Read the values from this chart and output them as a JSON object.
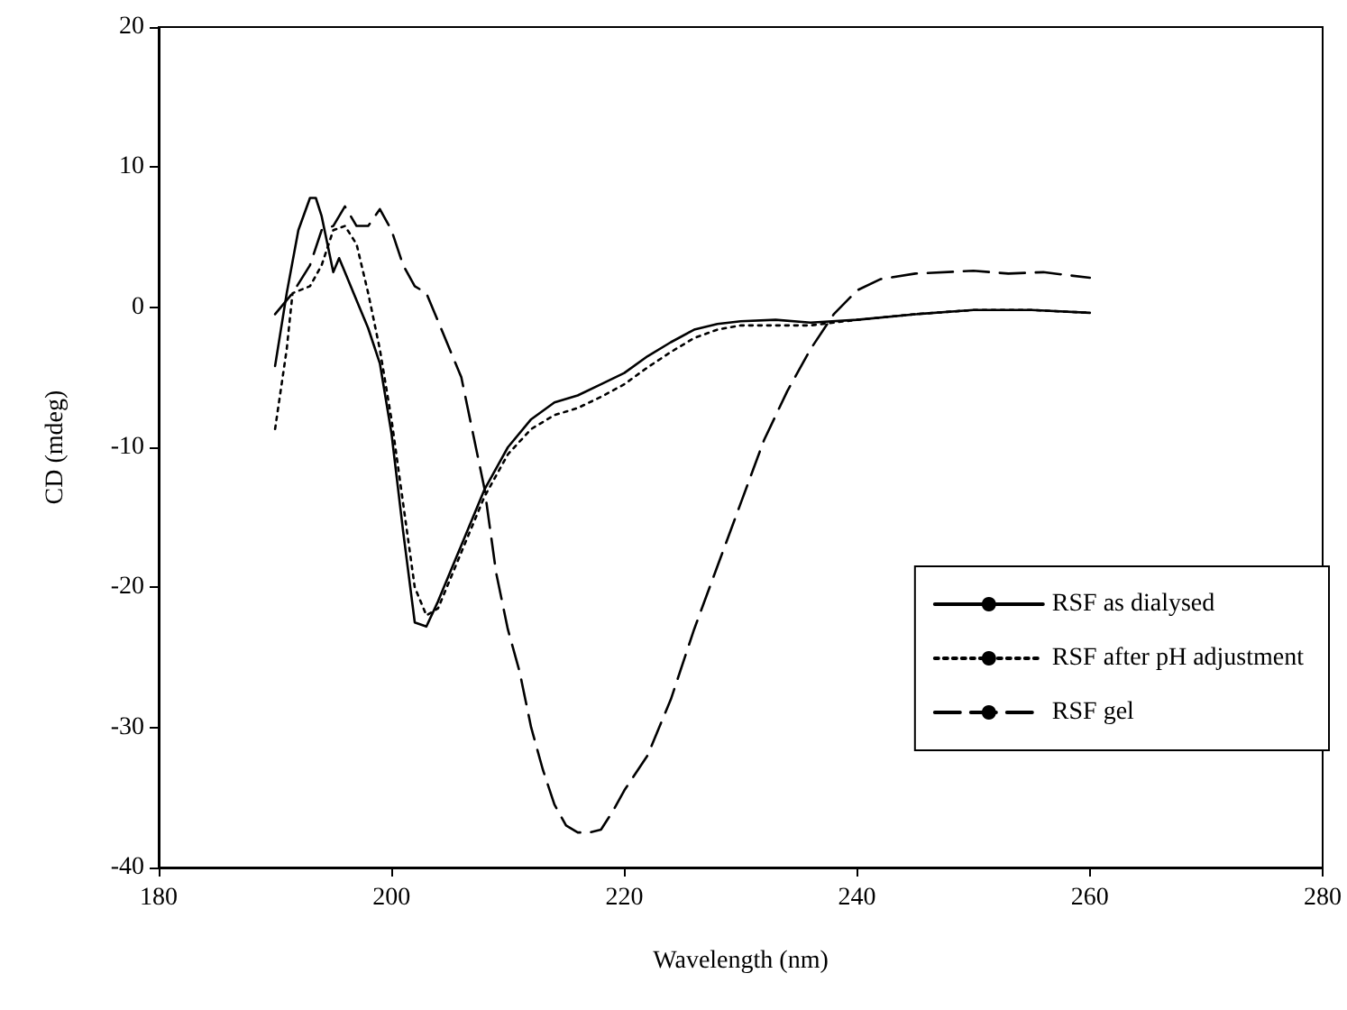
{
  "chart_data": {
    "type": "line",
    "xlabel": "Wavelength (nm)",
    "ylabel": "CD (mdeg)",
    "xlim": [
      180,
      280
    ],
    "xticks": [
      180,
      200,
      220,
      240,
      260,
      280
    ],
    "ylim": [
      -40,
      20
    ],
    "yticks": [
      -40,
      -30,
      -20,
      -10,
      0,
      10,
      20
    ],
    "grid": false,
    "legend": "bottom right",
    "marker": "none",
    "series": [
      {
        "name": "RSF as dialysed",
        "color": "#000000",
        "line_style": "solid",
        "x": [
          190,
          191,
          192,
          193,
          193.5,
          194,
          195,
          195.5,
          196,
          197,
          198,
          199,
          200,
          201,
          202,
          203,
          204,
          206,
          208,
          210,
          212,
          214,
          216,
          218,
          220,
          222,
          224,
          226,
          228,
          230,
          233,
          236,
          240,
          245,
          250,
          255,
          260
        ],
        "values": [
          -4.2,
          1,
          5.5,
          7.8,
          7.8,
          6.5,
          2.5,
          3.5,
          2.5,
          0.5,
          -1.5,
          -4,
          -9,
          -16,
          -22.5,
          -22.8,
          -21,
          -17,
          -13,
          -10,
          -8,
          -6.8,
          -6.3,
          -5.5,
          -4.7,
          -3.5,
          -2.5,
          -1.6,
          -1.2,
          -1,
          -0.9,
          -1.1,
          -0.9,
          -0.5,
          -0.2,
          -0.2,
          -0.4
        ]
      },
      {
        "name": "RSF after pH adjustment",
        "color": "#000000",
        "line_style": "dotted",
        "x": [
          190,
          191,
          191.5,
          193,
          194,
          195,
          196,
          197,
          198,
          199,
          200,
          201,
          202,
          203,
          204,
          206,
          208,
          210,
          212,
          214,
          216,
          218,
          220,
          222,
          224,
          226,
          228,
          230,
          233,
          236,
          238,
          240,
          245,
          250,
          255,
          260
        ],
        "values": [
          -8.7,
          -3,
          1,
          1.5,
          3,
          5.5,
          5.8,
          4.5,
          1,
          -3,
          -8,
          -14,
          -20,
          -22,
          -21.5,
          -17.5,
          -13.5,
          -10.5,
          -8.7,
          -7.7,
          -7.2,
          -6.4,
          -5.5,
          -4.3,
          -3.2,
          -2.2,
          -1.6,
          -1.3,
          -1.3,
          -1.3,
          -1.1,
          -0.9,
          -0.5,
          -0.2,
          -0.2,
          -0.4
        ]
      },
      {
        "name": "RSF gel",
        "color": "#000000",
        "line_style": "dashed",
        "x": [
          190,
          191.5,
          193,
          194,
          195,
          196,
          197,
          198,
          199,
          200,
          201,
          202,
          203,
          204,
          205,
          206,
          207,
          208,
          209,
          210,
          211,
          212,
          213,
          214,
          215,
          216,
          217,
          218,
          219,
          220,
          222,
          224,
          226,
          228,
          230,
          232,
          234,
          236,
          238,
          240,
          242,
          245,
          250,
          253,
          256,
          260
        ],
        "values": [
          -0.5,
          1,
          3,
          5.5,
          5.8,
          7.2,
          5.8,
          5.8,
          7,
          5.5,
          3,
          1.5,
          1,
          -1,
          -3,
          -5,
          -9,
          -13,
          -19,
          -23,
          -26,
          -30,
          -33,
          -35.5,
          -37,
          -37.5,
          -37.5,
          -37.3,
          -36,
          -34.5,
          -32,
          -28,
          -23,
          -18.5,
          -14,
          -9.5,
          -6,
          -3,
          -0.5,
          1.2,
          2,
          2.4,
          2.6,
          2.4,
          2.5,
          2.1
        ]
      }
    ]
  }
}
